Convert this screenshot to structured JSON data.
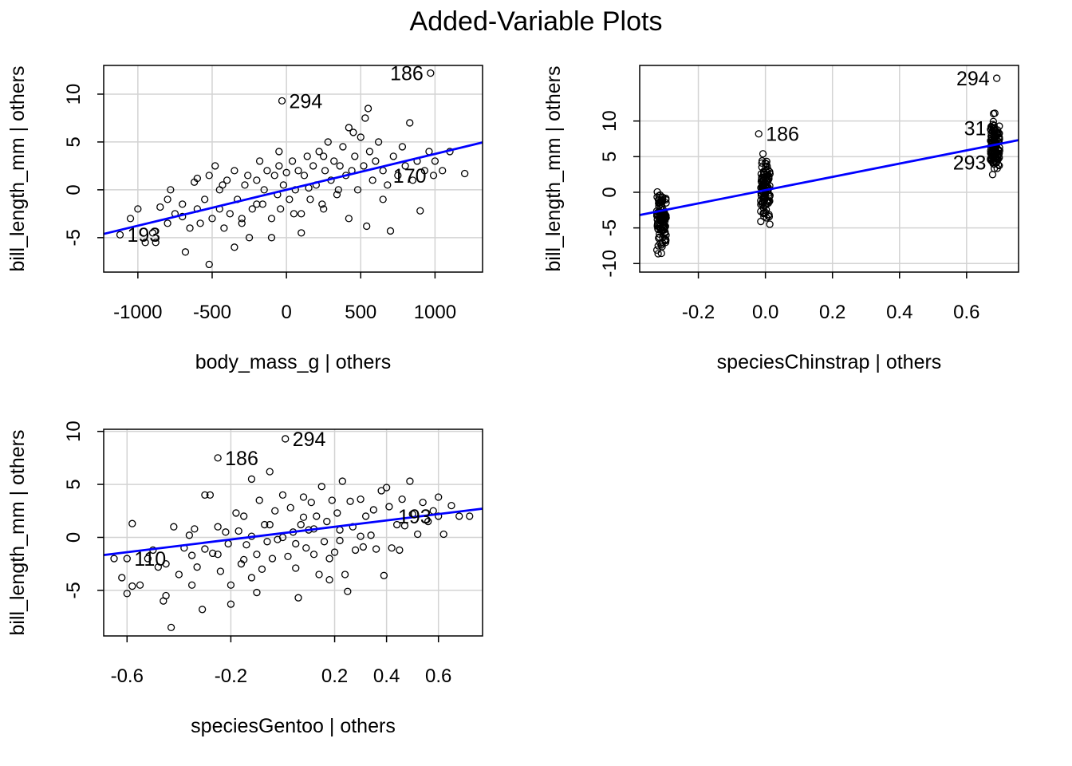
{
  "title": "Added-Variable Plots",
  "style": {
    "fit_color": "#0000ff",
    "grid_color": "#d3d3d3",
    "point_color": "#000000"
  },
  "chart_data": [
    {
      "type": "scatter",
      "xlabel": "body_mass_g | others",
      "ylabel": "bill_length_mm  | others",
      "xlim": [
        -1230,
        1320
      ],
      "ylim": [
        -8.6,
        13.0
      ],
      "xticks": [
        -1000,
        -500,
        0,
        500,
        1000
      ],
      "xtick_labels": [
        "-1000",
        "-500",
        "0",
        "500",
        "1000"
      ],
      "yticks": [
        -5,
        0,
        5,
        10
      ],
      "ytick_labels": [
        "-5",
        "0",
        "5",
        "10"
      ],
      "grid": true,
      "fit_line": {
        "intercept": 0.0,
        "slope": 0.00375
      },
      "labels": [
        {
          "text": "186",
          "x": 970,
          "y": 12.2,
          "side": "left"
        },
        {
          "text": "294",
          "x": -30,
          "y": 9.3,
          "side": "right"
        },
        {
          "text": "170",
          "x": 990,
          "y": 1.5,
          "side": "left"
        },
        {
          "text": "193",
          "x": -1120,
          "y": -4.7,
          "side": "right"
        }
      ],
      "points": [
        [
          970,
          12.2
        ],
        [
          -30,
          9.3
        ],
        [
          990,
          1.5
        ],
        [
          -1120,
          -4.7
        ],
        [
          -1050,
          -3.0
        ],
        [
          -1000,
          -2.0
        ],
        [
          -900,
          -4.5
        ],
        [
          -850,
          -1.8
        ],
        [
          -800,
          -3.5
        ],
        [
          -780,
          0.0
        ],
        [
          -750,
          -2.5
        ],
        [
          -700,
          -1.5
        ],
        [
          -650,
          -4.0
        ],
        [
          -620,
          0.8
        ],
        [
          -600,
          -2.0
        ],
        [
          -580,
          -3.5
        ],
        [
          -550,
          -1.0
        ],
        [
          -520,
          1.5
        ],
        [
          -500,
          -3.0
        ],
        [
          -480,
          2.5
        ],
        [
          -450,
          -2.0
        ],
        [
          -430,
          0.5
        ],
        [
          -420,
          -4.0
        ],
        [
          -400,
          1.0
        ],
        [
          -380,
          -2.5
        ],
        [
          -350,
          2.0
        ],
        [
          -330,
          -1.0
        ],
        [
          -300,
          -3.0
        ],
        [
          -280,
          0.5
        ],
        [
          -260,
          1.5
        ],
        [
          -250,
          -5.0
        ],
        [
          -230,
          -2.0
        ],
        [
          -200,
          1.0
        ],
        [
          -180,
          3.0
        ],
        [
          -160,
          -1.5
        ],
        [
          -150,
          0.0
        ],
        [
          -130,
          2.0
        ],
        [
          -100,
          -3.0
        ],
        [
          -80,
          1.5
        ],
        [
          -60,
          -0.5
        ],
        [
          -50,
          2.5
        ],
        [
          -40,
          -2.0
        ],
        [
          -20,
          0.5
        ],
        [
          0,
          1.8
        ],
        [
          20,
          -1.0
        ],
        [
          40,
          3.0
        ],
        [
          60,
          0.0
        ],
        [
          80,
          2.0
        ],
        [
          100,
          -2.5
        ],
        [
          120,
          1.5
        ],
        [
          140,
          3.5
        ],
        [
          160,
          -1.0
        ],
        [
          180,
          2.5
        ],
        [
          200,
          0.5
        ],
        [
          220,
          4.0
        ],
        [
          240,
          -1.5
        ],
        [
          260,
          2.0
        ],
        [
          280,
          5.0
        ],
        [
          300,
          1.0
        ],
        [
          320,
          3.0
        ],
        [
          340,
          -0.5
        ],
        [
          360,
          2.5
        ],
        [
          380,
          4.5
        ],
        [
          400,
          1.5
        ],
        [
          420,
          6.5
        ],
        [
          440,
          2.0
        ],
        [
          460,
          3.5
        ],
        [
          480,
          0.0
        ],
        [
          500,
          5.5
        ],
        [
          520,
          2.5
        ],
        [
          540,
          -3.8
        ],
        [
          560,
          4.0
        ],
        [
          580,
          1.0
        ],
        [
          600,
          3.0
        ],
        [
          620,
          5.0
        ],
        [
          650,
          2.0
        ],
        [
          680,
          0.5
        ],
        [
          700,
          -4.3
        ],
        [
          720,
          3.5
        ],
        [
          750,
          1.5
        ],
        [
          780,
          4.5
        ],
        [
          800,
          2.5
        ],
        [
          830,
          7.0
        ],
        [
          850,
          1.0
        ],
        [
          880,
          3.0
        ],
        [
          900,
          -2.2
        ],
        [
          930,
          2.0
        ],
        [
          960,
          4.0
        ],
        [
          1000,
          3.0
        ],
        [
          1050,
          2.0
        ],
        [
          1100,
          4.0
        ],
        [
          1200,
          1.7
        ],
        [
          -950,
          -5.5
        ],
        [
          -880,
          -5.5
        ],
        [
          -680,
          -6.5
        ],
        [
          -520,
          -7.8
        ],
        [
          -300,
          -3.5
        ],
        [
          -100,
          -5.0
        ],
        [
          150,
          0.2
        ],
        [
          350,
          0.0
        ],
        [
          650,
          -1.0
        ],
        [
          -700,
          -2.8
        ],
        [
          -450,
          0.0
        ],
        [
          -200,
          -1.5
        ],
        [
          50,
          -2.5
        ],
        [
          250,
          3.5
        ],
        [
          450,
          6.0
        ],
        [
          530,
          7.5
        ],
        [
          -350,
          -6.0
        ],
        [
          -50,
          4.0
        ],
        [
          250,
          -2.0
        ],
        [
          550,
          8.5
        ],
        [
          100,
          -4.5
        ],
        [
          420,
          -3.0
        ],
        [
          -800,
          -1.0
        ],
        [
          -600,
          1.2
        ]
      ]
    },
    {
      "type": "scatter",
      "xlabel": "speciesChinstrap | others",
      "ylabel": "bill_length_mm  | others",
      "xlim": [
        -0.375,
        0.755
      ],
      "ylim": [
        -11.2,
        17.8
      ],
      "xticks": [
        -0.2,
        0.0,
        0.2,
        0.4,
        0.6
      ],
      "xtick_labels": [
        "-0.2",
        "0.0",
        "0.2",
        "0.4",
        "0.6"
      ],
      "yticks": [
        -10,
        -5,
        0,
        5,
        10
      ],
      "ytick_labels": [
        "-10",
        "-5",
        "0",
        "5",
        "10"
      ],
      "grid": true,
      "fit_line": {
        "intercept": 0.3,
        "slope": 9.3
      },
      "clusters": [
        {
          "x": -0.31,
          "spread": 0.014,
          "ymin": -10.0,
          "ymax": 2.0
        },
        {
          "x": 0.0,
          "spread": 0.014,
          "ymin": -5.8,
          "ymax": 6.5
        },
        {
          "x": 0.685,
          "spread": 0.014,
          "ymin": 1.0,
          "ymax": 12.5
        }
      ],
      "labels": [
        {
          "text": "294",
          "x": 0.69,
          "y": 16.0,
          "side": "left"
        },
        {
          "text": "186",
          "x": -0.02,
          "y": 8.2,
          "side": "right"
        },
        {
          "text": "31",
          "x": 0.68,
          "y": 9.0,
          "side": "left"
        },
        {
          "text": "293",
          "x": 0.68,
          "y": 4.2,
          "side": "left"
        }
      ],
      "points": [
        [
          0.69,
          16.0
        ],
        [
          -0.02,
          8.2
        ],
        [
          0.68,
          9.0
        ],
        [
          0.68,
          4.2
        ]
      ]
    },
    {
      "type": "scatter",
      "xlabel": "speciesGentoo | others",
      "ylabel": "bill_length_mm  | others",
      "xlim": [
        -0.69,
        0.77
      ],
      "ylim": [
        -9.3,
        10.2
      ],
      "xticks": [
        -0.6,
        -0.2,
        0.2,
        0.4,
        0.6
      ],
      "xtick_labels": [
        "-0.6",
        "-0.2",
        "0.2",
        "0.4",
        "0.6"
      ],
      "yticks": [
        -5,
        0,
        5,
        10
      ],
      "ytick_labels": [
        "-5",
        "0",
        "5",
        "10"
      ],
      "grid": true,
      "fit_line": {
        "intercept": 0.4,
        "slope": 3.0
      },
      "labels": [
        {
          "text": "294",
          "x": 0.01,
          "y": 9.3,
          "side": "right"
        },
        {
          "text": "186",
          "x": -0.25,
          "y": 7.5,
          "side": "right"
        },
        {
          "text": "193",
          "x": 0.6,
          "y": 2.0,
          "side": "left"
        },
        {
          "text": "110",
          "x": -0.6,
          "y": -2.0,
          "side": "right"
        }
      ],
      "points": [
        [
          0.01,
          9.3
        ],
        [
          -0.25,
          7.5
        ],
        [
          0.6,
          2.0
        ],
        [
          -0.6,
          -2.0
        ],
        [
          -0.65,
          -2.0
        ],
        [
          -0.62,
          -3.8
        ],
        [
          -0.6,
          -5.3
        ],
        [
          -0.58,
          -4.6
        ],
        [
          -0.55,
          -4.5
        ],
        [
          -0.58,
          1.3
        ],
        [
          -0.52,
          -2.0
        ],
        [
          -0.5,
          -1.2
        ],
        [
          -0.48,
          -2.8
        ],
        [
          -0.46,
          -6.0
        ],
        [
          -0.45,
          -2.5
        ],
        [
          -0.42,
          1.0
        ],
        [
          -0.43,
          -8.5
        ],
        [
          -0.4,
          -3.5
        ],
        [
          -0.38,
          -1.0
        ],
        [
          -0.36,
          0.2
        ],
        [
          -0.35,
          -4.5
        ],
        [
          -0.34,
          0.8
        ],
        [
          -0.33,
          -2.8
        ],
        [
          -0.3,
          4.0
        ],
        [
          -0.31,
          -6.8
        ],
        [
          -0.28,
          4.0
        ],
        [
          -0.27,
          -1.5
        ],
        [
          -0.25,
          1.0
        ],
        [
          -0.24,
          -3.2
        ],
        [
          -0.22,
          0.5
        ],
        [
          -0.21,
          -0.6
        ],
        [
          -0.2,
          -4.5
        ],
        [
          -0.2,
          -6.3
        ],
        [
          -0.18,
          2.3
        ],
        [
          -0.17,
          0.6
        ],
        [
          -0.16,
          -2.5
        ],
        [
          -0.15,
          2.0
        ],
        [
          -0.14,
          -0.7
        ],
        [
          -0.12,
          5.5
        ],
        [
          -0.12,
          0.1
        ],
        [
          -0.1,
          -1.6
        ],
        [
          -0.1,
          -5.2
        ],
        [
          -0.09,
          3.5
        ],
        [
          -0.08,
          -3.0
        ],
        [
          -0.07,
          1.2
        ],
        [
          -0.06,
          -0.4
        ],
        [
          -0.05,
          6.2
        ],
        [
          -0.04,
          -2.0
        ],
        [
          -0.03,
          2.5
        ],
        [
          -0.02,
          -0.2
        ],
        [
          0.0,
          0.0
        ],
        [
          0.0,
          4.0
        ],
        [
          0.02,
          -1.8
        ],
        [
          0.03,
          2.8
        ],
        [
          0.04,
          0.5
        ],
        [
          0.05,
          -2.9
        ],
        [
          0.06,
          -5.7
        ],
        [
          0.07,
          1.2
        ],
        [
          0.08,
          3.8
        ],
        [
          0.09,
          -1.0
        ],
        [
          0.1,
          0.7
        ],
        [
          0.11,
          3.3
        ],
        [
          0.12,
          -1.6
        ],
        [
          0.13,
          2.0
        ],
        [
          0.14,
          -3.5
        ],
        [
          0.15,
          4.8
        ],
        [
          0.16,
          -0.4
        ],
        [
          0.17,
          1.5
        ],
        [
          0.18,
          -4.0
        ],
        [
          0.19,
          3.5
        ],
        [
          0.2,
          -1.4
        ],
        [
          0.21,
          2.3
        ],
        [
          0.22,
          0.7
        ],
        [
          0.23,
          5.3
        ],
        [
          0.24,
          -3.5
        ],
        [
          0.25,
          -5.1
        ],
        [
          0.26,
          3.4
        ],
        [
          0.27,
          1.0
        ],
        [
          0.28,
          -1.2
        ],
        [
          0.3,
          3.6
        ],
        [
          0.31,
          -0.9
        ],
        [
          0.32,
          2.0
        ],
        [
          0.34,
          0.2
        ],
        [
          0.35,
          2.6
        ],
        [
          0.36,
          -1.1
        ],
        [
          0.38,
          4.4
        ],
        [
          0.39,
          -3.6
        ],
        [
          0.4,
          4.7
        ],
        [
          0.41,
          2.9
        ],
        [
          0.42,
          -1.0
        ],
        [
          0.44,
          1.2
        ],
        [
          0.46,
          3.6
        ],
        [
          0.47,
          1.1
        ],
        [
          0.49,
          5.3
        ],
        [
          0.5,
          2.2
        ],
        [
          0.52,
          0.3
        ],
        [
          0.54,
          3.3
        ],
        [
          0.56,
          1.5
        ],
        [
          0.58,
          2.5
        ],
        [
          0.6,
          3.8
        ],
        [
          0.62,
          0.3
        ],
        [
          0.65,
          3.0
        ],
        [
          0.68,
          2.0
        ],
        [
          0.72,
          2.0
        ],
        [
          -0.45,
          -5.5
        ],
        [
          -0.35,
          -1.7
        ],
        [
          -0.3,
          -1.1
        ],
        [
          -0.15,
          -2.1
        ],
        [
          -0.05,
          1.2
        ],
        [
          0.05,
          -0.6
        ],
        [
          0.12,
          0.8
        ],
        [
          0.22,
          -0.3
        ],
        [
          0.3,
          0.1
        ],
        [
          0.45,
          -1.2
        ],
        [
          -0.25,
          -1.6
        ],
        [
          -0.12,
          -3.8
        ],
        [
          0.08,
          1.9
        ],
        [
          0.18,
          -2.0
        ]
      ]
    }
  ]
}
